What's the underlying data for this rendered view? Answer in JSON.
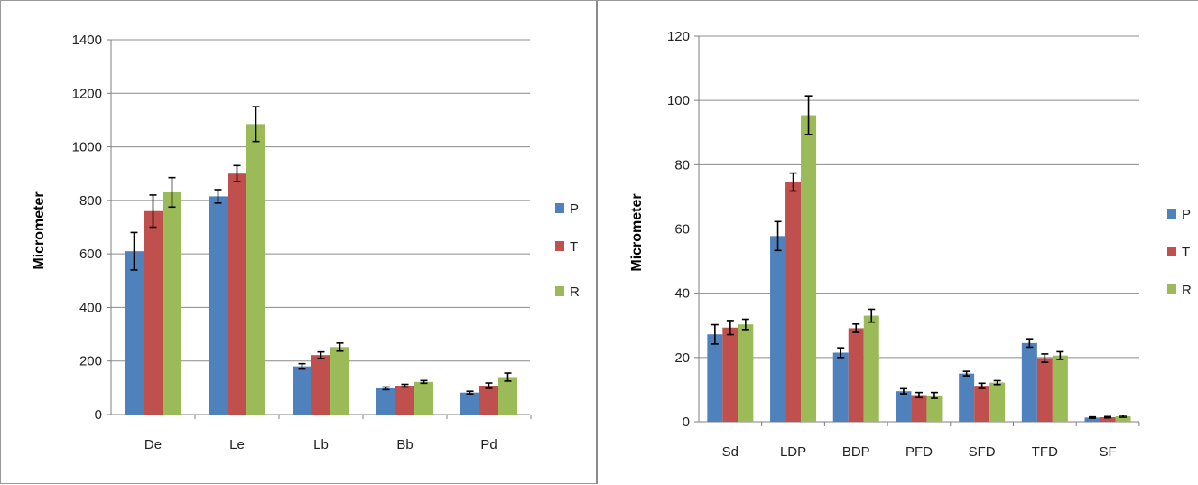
{
  "colors": {
    "P": "#4f81bd",
    "T": "#c0504d",
    "R": "#9bbb59",
    "grid": "#8c8c8c",
    "axis": "#7f7f7f",
    "error": "#000000"
  },
  "chart_data": [
    {
      "type": "bar",
      "title": "",
      "xlabel": "",
      "ylabel": "Micrometer",
      "ylim": [
        0,
        1400
      ],
      "yticks": [
        0,
        200,
        400,
        600,
        800,
        1000,
        1200,
        1400
      ],
      "grid": true,
      "legend": "right",
      "categories": [
        "De",
        "Le",
        "Lb",
        "Bb",
        "Pd"
      ],
      "series": [
        {
          "name": "P",
          "values": [
            610,
            815,
            180,
            98,
            82
          ],
          "errors": [
            70,
            25,
            10,
            5,
            5
          ]
        },
        {
          "name": "T",
          "values": [
            760,
            900,
            222,
            108,
            108
          ],
          "errors": [
            60,
            30,
            12,
            5,
            10
          ]
        },
        {
          "name": "R",
          "values": [
            830,
            1085,
            252,
            122,
            140
          ],
          "errors": [
            55,
            65,
            15,
            5,
            15
          ]
        }
      ]
    },
    {
      "type": "bar",
      "title": "",
      "xlabel": "",
      "ylabel": "Micrometer",
      "ylim": [
        0,
        120
      ],
      "yticks": [
        0,
        20,
        40,
        60,
        80,
        100,
        120
      ],
      "grid": true,
      "legend": "right",
      "categories": [
        "Sd",
        "LDP",
        "BDP",
        "PFD",
        "SFD",
        "TFD",
        "SF"
      ],
      "series": [
        {
          "name": "P",
          "values": [
            27.2,
            57.8,
            21.5,
            9.5,
            15.0,
            24.5,
            1.3
          ],
          "errors": [
            3.0,
            4.5,
            1.5,
            0.8,
            0.7,
            1.3,
            0.2
          ]
        },
        {
          "name": "T",
          "values": [
            29.3,
            74.6,
            29.1,
            8.3,
            11.2,
            19.8,
            1.4
          ],
          "errors": [
            2.2,
            2.8,
            1.3,
            0.8,
            0.8,
            1.3,
            0.2
          ]
        },
        {
          "name": "R",
          "values": [
            30.3,
            95.4,
            33.0,
            8.2,
            12.2,
            20.6,
            1.7
          ],
          "errors": [
            1.6,
            6.0,
            2.0,
            0.9,
            0.6,
            1.2,
            0.3
          ]
        }
      ]
    }
  ]
}
